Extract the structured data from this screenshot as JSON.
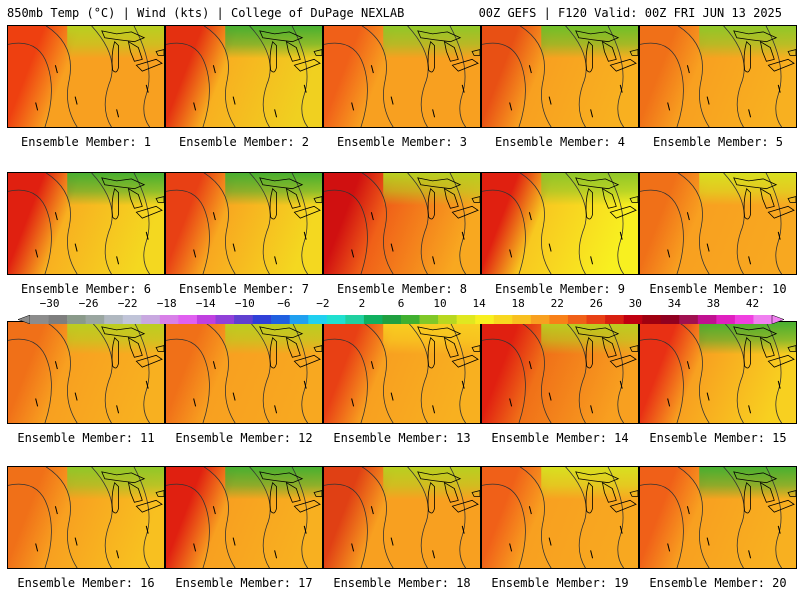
{
  "header": {
    "left": "850mb Temp (°C) | Wind (kts) | College of DuPage NEXLAB",
    "right": "00Z GEFS | F120 Valid: 00Z FRI JUN 13 2025"
  },
  "panels": [
    {
      "label": "Ensemble Member: 1",
      "west": "#ee4010",
      "mid": "#f8a020",
      "east": "#f8a020",
      "north": "#b8d020"
    },
    {
      "label": "Ensemble Member: 2",
      "west": "#e43010",
      "mid": "#f8b020",
      "east": "#f0d020",
      "north": "#48b030"
    },
    {
      "label": "Ensemble Member: 3",
      "west": "#f06018",
      "mid": "#f8a020",
      "east": "#f8a020",
      "north": "#90c828"
    },
    {
      "label": "Ensemble Member: 4",
      "west": "#e85014",
      "mid": "#f8a020",
      "east": "#f8b020",
      "north": "#70c028"
    },
    {
      "label": "Ensemble Member: 5",
      "west": "#f07018",
      "mid": "#f8a020",
      "east": "#f8b020",
      "north": "#90c828"
    },
    {
      "label": "Ensemble Member: 6",
      "west": "#e02010",
      "mid": "#f8b020",
      "east": "#f4d820",
      "north": "#48b030"
    },
    {
      "label": "Ensemble Member: 7",
      "west": "#e84014",
      "mid": "#f8a820",
      "east": "#f4d820",
      "north": "#48b030"
    },
    {
      "label": "Ensemble Member: 8",
      "west": "#d01010",
      "mid": "#f06018",
      "east": "#f8a820",
      "north": "#b8d020"
    },
    {
      "label": "Ensemble Member: 9",
      "west": "#e02010",
      "mid": "#f8c820",
      "east": "#f8f020",
      "north": "#90c828"
    },
    {
      "label": "Ensemble Member: 10",
      "west": "#f07018",
      "mid": "#f8a020",
      "east": "#f8a820",
      "north": "#d8e020"
    },
    {
      "label": "Ensemble Member: 11",
      "west": "#f07018",
      "mid": "#f8a020",
      "east": "#f8b020",
      "north": "#b8d020"
    },
    {
      "label": "Ensemble Member: 12",
      "west": "#f07018",
      "mid": "#f8a020",
      "east": "#f8a820",
      "north": "#b8d020"
    },
    {
      "label": "Ensemble Member: 13",
      "west": "#e84014",
      "mid": "#f8a020",
      "east": "#f8b020",
      "north": "#f8d020"
    },
    {
      "label": "Ensemble Member: 14",
      "west": "#e02010",
      "mid": "#f07018",
      "east": "#f8a020",
      "north": "#b8d020"
    },
    {
      "label": "Ensemble Member: 15",
      "west": "#e83014",
      "mid": "#f8a020",
      "east": "#f8d020",
      "north": "#48b030"
    },
    {
      "label": "Ensemble Member: 16",
      "west": "#f07018",
      "mid": "#f8a020",
      "east": "#f8c020",
      "north": "#90c828"
    },
    {
      "label": "Ensemble Member: 17",
      "west": "#e02010",
      "mid": "#f8a020",
      "east": "#f8b020",
      "north": "#48b030"
    },
    {
      "label": "Ensemble Member: 18",
      "west": "#e04014",
      "mid": "#f8a020",
      "east": "#f8a020",
      "north": "#b8d020"
    },
    {
      "label": "Ensemble Member: 19",
      "west": "#f06018",
      "mid": "#f8a020",
      "east": "#f8a820",
      "north": "#d8e020"
    },
    {
      "label": "Ensemble Member: 20",
      "west": "#f06018",
      "mid": "#f8a020",
      "east": "#f8b020",
      "north": "#48b030"
    }
  ],
  "colorbar": {
    "ticks": [
      "−30",
      "−26",
      "−22",
      "−18",
      "−14",
      "−10",
      "−6",
      "−2",
      "2",
      "6",
      "10",
      "14",
      "18",
      "22",
      "26",
      "30",
      "34",
      "38",
      "42"
    ],
    "colors": [
      "#8c8c8c",
      "#7e7e7e",
      "#8a9a8a",
      "#9aa6a0",
      "#b0b8c0",
      "#c0c4d8",
      "#c8a8e0",
      "#d880e8",
      "#e060f0",
      "#c040e0",
      "#9040d8",
      "#6040d0",
      "#3040d8",
      "#2060e0",
      "#20a0f0",
      "#20d0f0",
      "#20e0d0",
      "#20d0a0",
      "#10b060",
      "#20a040",
      "#40b030",
      "#80c828",
      "#b8d820",
      "#e0e820",
      "#f8f020",
      "#f8d820",
      "#f8c020",
      "#f8a020",
      "#f88018",
      "#f06018",
      "#e84014",
      "#d82010",
      "#c00010",
      "#a00010",
      "#900020",
      "#a01050",
      "#c01090",
      "#e020c0",
      "#f040e0",
      "#f080f0"
    ]
  }
}
